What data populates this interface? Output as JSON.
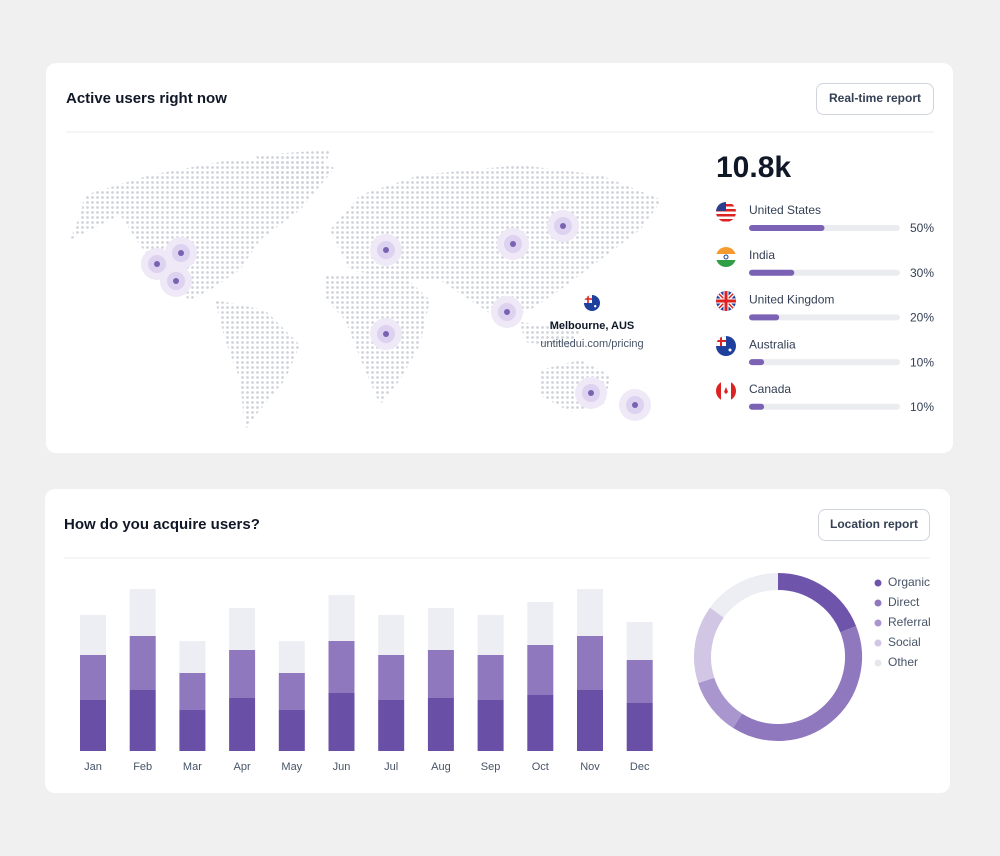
{
  "active_users": {
    "title": "Active users right now",
    "button": "Real-time report",
    "total": "10.8k",
    "tooltip": {
      "city": "Melbourne, AUS",
      "url": "untitledui.com/pricing"
    },
    "bar_color": "#7b62b5",
    "track_color": "#eaecf0",
    "countries": [
      {
        "name": "United States",
        "value": 50,
        "value_label": "50%"
      },
      {
        "name": "India",
        "value": 30,
        "value_label": "30%"
      },
      {
        "name": "United Kingdom",
        "value": 20,
        "value_label": "20%"
      },
      {
        "name": "Australia",
        "value": 10,
        "value_label": "10%"
      },
      {
        "name": "Canada",
        "value": 10,
        "value_label": "10%"
      }
    ]
  },
  "acquisition": {
    "title": "How do you acquire users?",
    "button": "Location report"
  },
  "chart_data": [
    {
      "type": "bar",
      "stacked": true,
      "categories": [
        "Jan",
        "Feb",
        "Mar",
        "Apr",
        "May",
        "Jun",
        "Jul",
        "Aug",
        "Sep",
        "Oct",
        "Nov",
        "Dec"
      ],
      "series": [
        {
          "color": "#6950a6",
          "values": [
            51,
            61,
            41,
            53,
            41,
            58,
            51,
            53,
            51,
            56,
            61,
            48
          ]
        },
        {
          "color": "#8f78bd",
          "values": [
            45,
            54,
            37,
            48,
            37,
            52,
            45,
            48,
            45,
            50,
            54,
            43
          ]
        },
        {
          "color": "#eceef3",
          "values": [
            40,
            47,
            32,
            42,
            32,
            46,
            40,
            42,
            40,
            43,
            47,
            38
          ]
        }
      ]
    },
    {
      "type": "pie",
      "donut": true,
      "categories": [
        "Organic",
        "Direct",
        "Referral",
        "Social",
        "Other"
      ],
      "values": [
        19,
        40,
        11,
        15,
        15
      ],
      "colors": [
        "#6e55ab",
        "#8f78bd",
        "#a996cf",
        "#d2c6e5",
        "#eceef3"
      ],
      "legend": "right"
    }
  ]
}
